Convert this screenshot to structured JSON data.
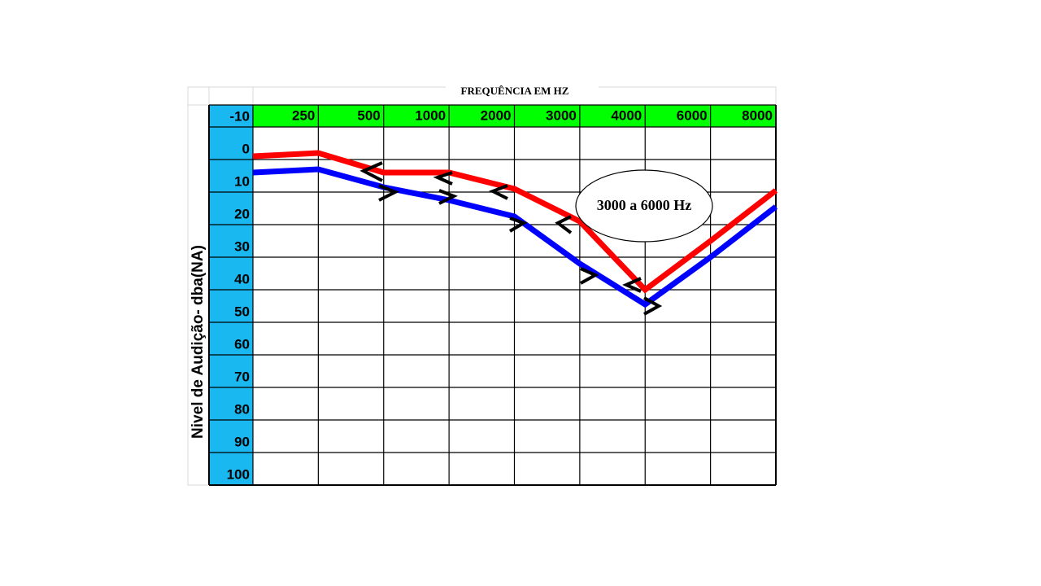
{
  "chart_data": {
    "type": "line",
    "title": "FREQUÊNCIA EM HZ",
    "y_label": "Nivel de Audição- dba(NA)",
    "annotation": "3000 a 6000 Hz",
    "categories": [
      null,
      "250",
      "500",
      "1000",
      "2000",
      "3000",
      "4000",
      "6000",
      "8000"
    ],
    "series": [
      {
        "color": "#ff0000",
        "values": [
          -1,
          -2,
          4,
          4,
          9,
          19,
          40,
          25,
          9.5
        ]
      },
      {
        "color": "#0000ff",
        "values": [
          4,
          3,
          8.5,
          12.5,
          17.5,
          32,
          44.5,
          30,
          14.5
        ]
      }
    ],
    "ylim": [
      -10,
      100
    ],
    "yticks": [
      -10,
      0,
      10,
      20,
      30,
      40,
      50,
      60,
      70,
      80,
      90,
      100
    ],
    "x_band_color": "#00ff00",
    "y_band_color": "#1ab8f0",
    "grid": true
  }
}
